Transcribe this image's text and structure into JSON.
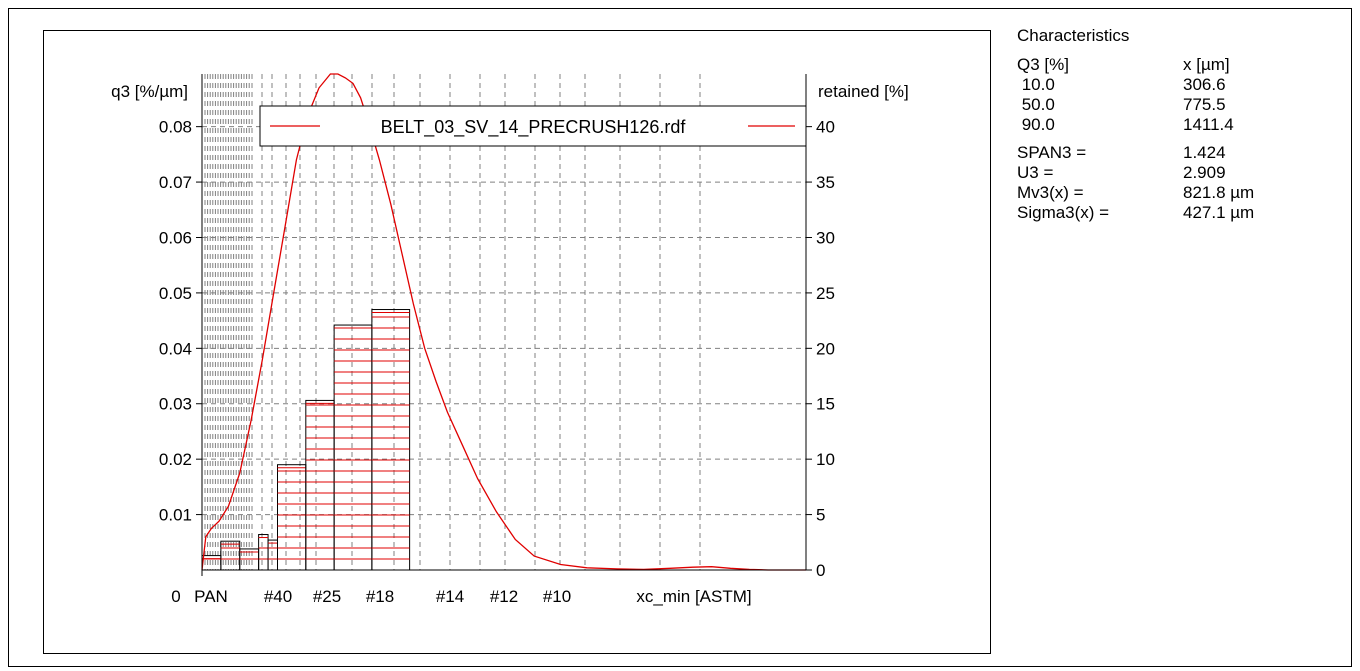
{
  "colors": {
    "series": "#e00000",
    "grid": "#808080",
    "axis": "#000000",
    "bar_outline": "#000000"
  },
  "chart_data": {
    "type": "bar",
    "title": "",
    "left_axis": {
      "label": "q3 [%/µm]",
      "ticks": [
        "0.01",
        "0.02",
        "0.03",
        "0.04",
        "0.05",
        "0.06",
        "0.07",
        "0.08"
      ],
      "ylim": [
        0,
        0.0895
      ]
    },
    "right_axis": {
      "label": "retained [%]",
      "ticks": [
        "0",
        "5",
        "10",
        "15",
        "20",
        "25",
        "30",
        "35",
        "40"
      ],
      "ylim": [
        0,
        44.75
      ]
    },
    "x_axis": {
      "label": "xc_min [ASTM]",
      "origin_label": "0",
      "tick_labels": [
        "PAN",
        "#40",
        "#25",
        "#18",
        "#14",
        "#12",
        "#10"
      ]
    },
    "legend": {
      "entries": [
        "BELT_03_SV_14_PRECRUSH126.rdf"
      ],
      "placement": "top-center"
    },
    "grid": true,
    "bars_retained_percent": {
      "series_name": "BELT_03_SV_14_PRECRUSH126.rdf",
      "bins": [
        {
          "x0": 0,
          "x1": 0.5,
          "value": 1.3
        },
        {
          "x0": 0.5,
          "x1": 1.0,
          "value": 2.6
        },
        {
          "x0": 1.0,
          "x1": 1.5,
          "value": 1.9
        },
        {
          "x0": 1.5,
          "x1": 1.75,
          "value": 3.2
        },
        {
          "x0": 1.75,
          "x1": 2.0,
          "value": 2.7
        },
        {
          "x0": 2.0,
          "x1": 2.75,
          "value": 9.5
        },
        {
          "x0": 2.75,
          "x1": 3.5,
          "value": 15.3
        },
        {
          "x0": 3.5,
          "x1": 4.5,
          "value": 22.1
        },
        {
          "x0": 4.5,
          "x1": 5.5,
          "value": 23.5
        }
      ]
    },
    "density_curve_q3": {
      "series_name": "BELT_03_SV_14_PRECRUSH126.rdf",
      "x": [
        0,
        0.1,
        0.25,
        0.45,
        0.7,
        1.0,
        1.3,
        1.6,
        1.9,
        2.2,
        2.5,
        2.8,
        3.1,
        3.4,
        3.6,
        3.8,
        4.0,
        4.2,
        4.4,
        4.7,
        5.0,
        5.3,
        5.6,
        5.9,
        6.2,
        6.5,
        6.9,
        7.3,
        7.8,
        8.3,
        8.8,
        9.5,
        10.2,
        11.0,
        11.7,
        12.4,
        13.0,
        13.5,
        14.0,
        14.5,
        15.0,
        15.5,
        16.0
      ],
      "y": [
        0.0,
        0.006,
        0.0075,
        0.0088,
        0.0115,
        0.0175,
        0.027,
        0.038,
        0.05,
        0.062,
        0.074,
        0.082,
        0.087,
        0.0895,
        0.0895,
        0.0888,
        0.0878,
        0.0852,
        0.081,
        0.074,
        0.066,
        0.057,
        0.048,
        0.04,
        0.034,
        0.0285,
        0.0225,
        0.0165,
        0.0105,
        0.0055,
        0.0025,
        0.001,
        0.0004,
        0.0002,
        0.0001,
        0.0003,
        0.0005,
        0.0006,
        0.0003,
        0.0001,
        0.0,
        0.0,
        0.0
      ]
    }
  },
  "characteristics": {
    "title": "Characteristics",
    "header": {
      "left": "Q3 [%]",
      "right": "x [µm]"
    },
    "quantiles": [
      {
        "q": " 10.0",
        "x": "306.6"
      },
      {
        "q": " 50.0",
        "x": "775.5"
      },
      {
        "q": " 90.0",
        "x": "1411.4"
      }
    ],
    "stats": [
      {
        "label": "SPAN3 =",
        "value": "1.424"
      },
      {
        "label": "U3 =",
        "value": "2.909"
      },
      {
        "label": "Mv3(x) =",
        "value": "821.8 µm"
      },
      {
        "label": "Sigma3(x) =",
        "value": "427.1 µm"
      }
    ]
  }
}
